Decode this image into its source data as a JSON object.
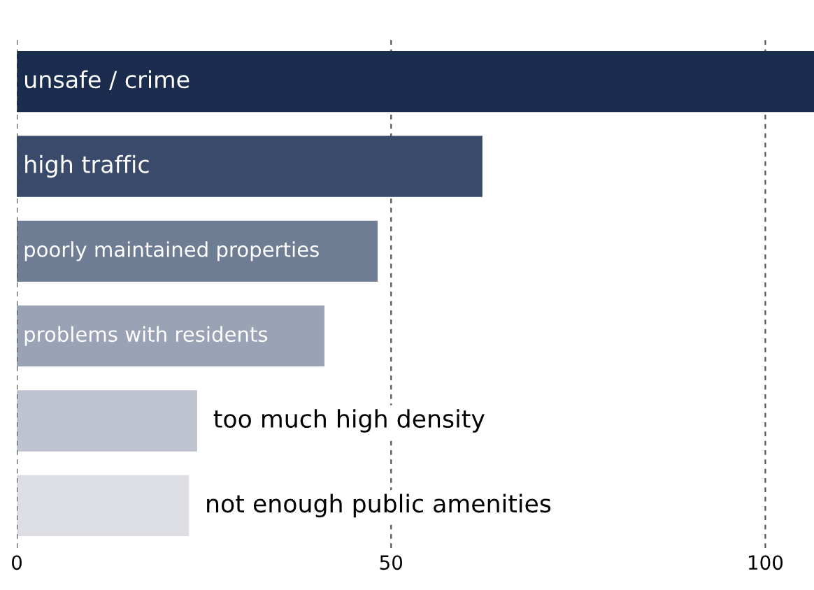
{
  "chart_data": {
    "type": "bar",
    "orientation": "horizontal",
    "categories": [
      "unsafe / crime",
      "high traffic",
      "poorly maintained properties",
      "problems with residents",
      "too much high density",
      "not enough public amenities"
    ],
    "values": [
      106.5,
      62.2,
      48.2,
      41.1,
      24.1,
      23.0
    ],
    "colors": [
      "#1b2d4f",
      "#3a4a6b",
      "#6e7d94",
      "#9aa3b5",
      "#bfc3d0",
      "#dcdee3"
    ],
    "xlim": [
      0,
      106.5
    ],
    "xticks": [
      0,
      50,
      100
    ],
    "grid": "x",
    "legend": false
  }
}
